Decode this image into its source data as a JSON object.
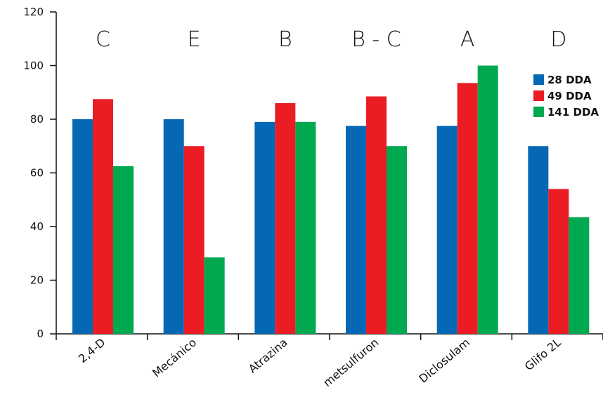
{
  "chart_data": {
    "type": "bar",
    "categories": [
      "2,4-D",
      "Mecánico",
      "Atrazina",
      "metsulfuron",
      "Diclosulam",
      "Glifo 2L"
    ],
    "group_letters": [
      "C",
      "E",
      "B",
      "B - C",
      "A",
      "D"
    ],
    "series": [
      {
        "name": "28 DDA",
        "color": "#0468b4",
        "values": [
          80,
          80,
          79,
          77.5,
          77.5,
          70
        ]
      },
      {
        "name": "49 DDA",
        "color": "#ec1c24",
        "values": [
          87.5,
          70,
          86,
          88.5,
          93.5,
          54
        ]
      },
      {
        "name": "141 DDA",
        "color": "#00a84f",
        "values": [
          62.5,
          28.5,
          79,
          70,
          100,
          43.5
        ]
      }
    ],
    "title": "",
    "xlabel": "",
    "ylabel": "",
    "ylim": [
      0,
      120
    ],
    "yticks": [
      0,
      20,
      40,
      60,
      80,
      100,
      120
    ],
    "grid": false,
    "legend_position": "top-right"
  }
}
